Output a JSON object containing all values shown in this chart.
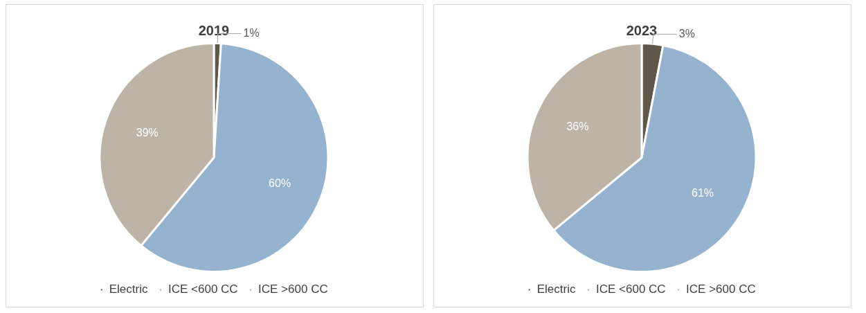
{
  "chart_data": [
    {
      "type": "pie",
      "title": "2019",
      "categories": [
        "Electric",
        "ICE <600 CC",
        "ICE >600 CC"
      ],
      "values": [
        1,
        60,
        39
      ],
      "colors": [
        "#5f5848",
        "#95b3cf",
        "#bdb4a7"
      ],
      "value_labels": [
        "1%",
        "60%",
        "39%"
      ],
      "legend": "bottom"
    },
    {
      "type": "pie",
      "title": "2023",
      "categories": [
        "Electric",
        "ICE <600 CC",
        "ICE >600 CC"
      ],
      "values": [
        3,
        61,
        36
      ],
      "colors": [
        "#5f5848",
        "#95b3cf",
        "#bdb4a7"
      ],
      "value_labels": [
        "3%",
        "61%",
        "36%"
      ],
      "legend": "bottom"
    }
  ]
}
